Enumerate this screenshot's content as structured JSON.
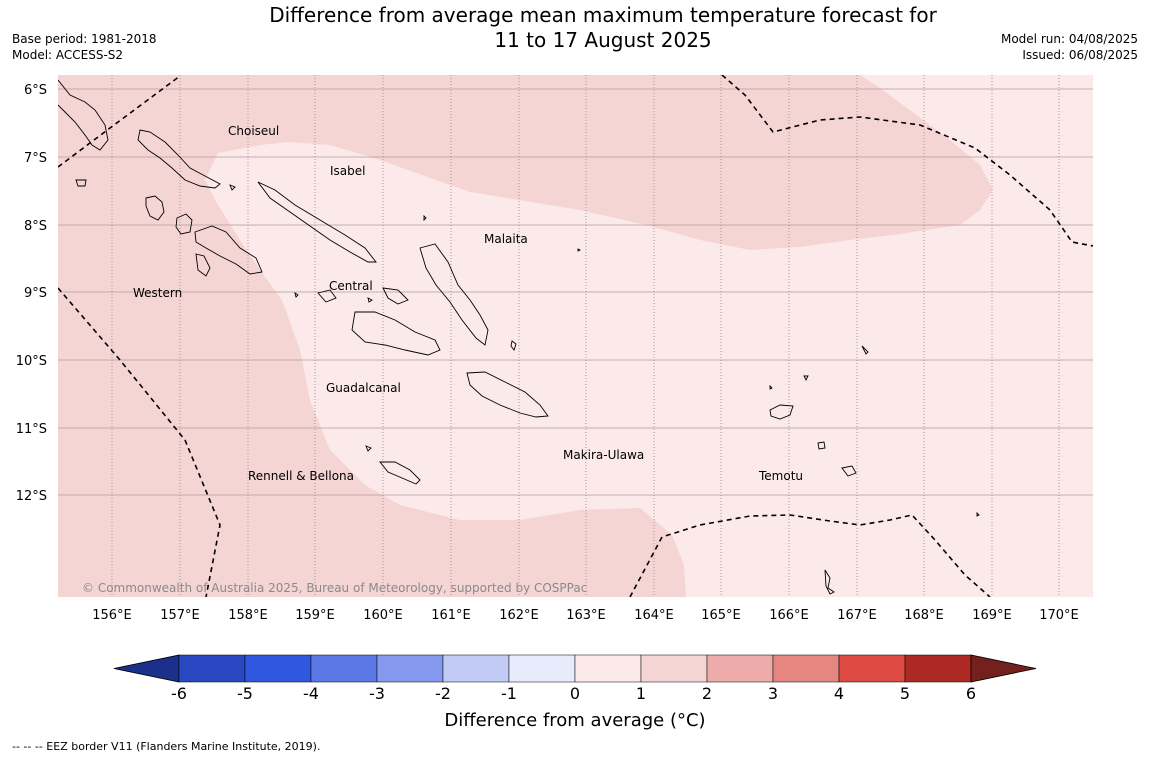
{
  "title": {
    "line1": "Difference from average mean maximum temperature forecast for",
    "line2": "11 to 17 August 2025"
  },
  "meta_left": {
    "base_period": "Base period: 1981-2018",
    "model": "Model: ACCESS-S2"
  },
  "meta_right": {
    "model_run": "Model run: 04/08/2025",
    "issued": "Issued: 06/08/2025"
  },
  "map": {
    "latitude_labels": [
      "6°S",
      "7°S",
      "8°S",
      "9°S",
      "10°S",
      "11°S",
      "12°S"
    ],
    "longitude_labels": [
      "156°E",
      "157°E",
      "158°E",
      "159°E",
      "160°E",
      "161°E",
      "162°E",
      "163°E",
      "164°E",
      "165°E",
      "166°E",
      "167°E",
      "168°E",
      "169°E",
      "170°E"
    ],
    "province_labels": [
      "Choiseul",
      "Isabel",
      "Malaita",
      "Western",
      "Central",
      "Guadalcanal",
      "Makira-Ulawa",
      "Rennell & Bellona",
      "Temotu"
    ],
    "copyright": "© Commonwealth of Australia 2025, Bureau of Meteorology, supported by COSPPac",
    "colors": {
      "range_0_1": "#fbeae9",
      "range_1_2": "#f5d5d4",
      "grid": "#b59a9a"
    }
  },
  "colorbar": {
    "ticks": [
      "-6",
      "-5",
      "-4",
      "-3",
      "-2",
      "-1",
      "0",
      "1",
      "2",
      "3",
      "4",
      "5",
      "6"
    ],
    "colors": [
      "#1c2f8a",
      "#2a48c2",
      "#3057e0",
      "#5b78e6",
      "#8499ee",
      "#c2cbf5",
      "#e8ebfb",
      "#fbeae9",
      "#f5d5d4",
      "#edaca9",
      "#e58780",
      "#dd4a41",
      "#ad2a24",
      "#74201c"
    ],
    "label": "Difference from average (°C)"
  },
  "footnote": "--  --  -- EEZ border V11 (Flanders Marine Institute, 2019)."
}
